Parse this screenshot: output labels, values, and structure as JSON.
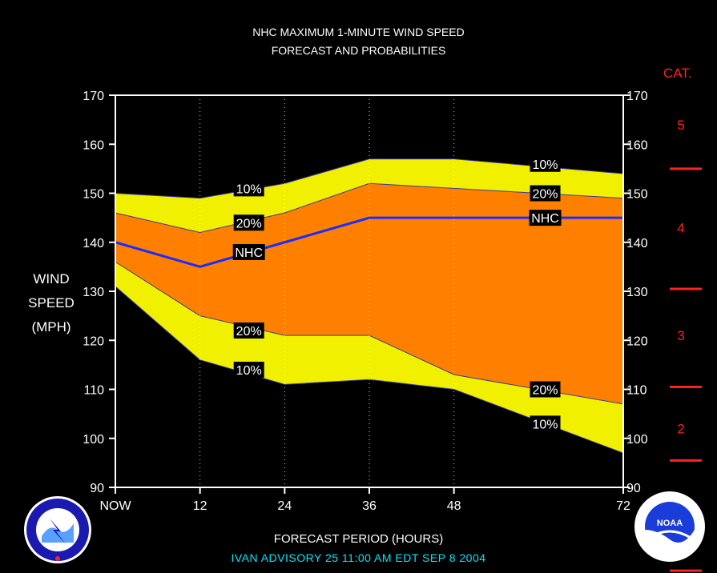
{
  "titles": {
    "line1": "NHC MAXIMUM 1-MINUTE WIND SPEED",
    "line2": "FORECAST AND PROBABILITIES"
  },
  "y_axis_label": [
    "WIND",
    "SPEED",
    "(MPH)"
  ],
  "x_axis_label": "FORECAST PERIOD (HOURS)",
  "advisory": "IVAN   ADVISORY  25 11:00 AM EDT SEP  8  2004",
  "category_title": "CAT.",
  "colors": {
    "background": "#000000",
    "band_10": "#f0f000",
    "band_20": "#ff8000",
    "nhc_line": "#1a2cff",
    "category": "#ff2020",
    "advisory": "#00e5ff"
  },
  "chart_data": {
    "type": "area",
    "x": [
      0,
      12,
      24,
      36,
      48,
      72
    ],
    "x_tick_labels": [
      "NOW",
      "12",
      "24",
      "36",
      "48",
      "72"
    ],
    "xlim": [
      0,
      72
    ],
    "ylim": [
      90,
      170
    ],
    "y_ticks": [
      90,
      100,
      110,
      120,
      130,
      140,
      150,
      160,
      170
    ],
    "grid": "vertical dotted at forecast hours",
    "series": [
      {
        "name": "10%",
        "role": "upper",
        "values": [
          150,
          149,
          152,
          157,
          157,
          154
        ]
      },
      {
        "name": "20%",
        "role": "upper",
        "values": [
          146,
          142,
          146,
          152,
          151,
          149
        ]
      },
      {
        "name": "NHC",
        "role": "forecast",
        "values": [
          140,
          135,
          140,
          145,
          145,
          145
        ]
      },
      {
        "name": "20%",
        "role": "lower",
        "values": [
          136,
          125,
          121,
          121,
          113,
          107
        ]
      },
      {
        "name": "10%",
        "role": "lower",
        "values": [
          131,
          116,
          111,
          112,
          110,
          97
        ]
      }
    ],
    "annotations": [
      {
        "text": "10%",
        "x": 17,
        "y": 151
      },
      {
        "text": "20%",
        "x": 17,
        "y": 144
      },
      {
        "text": "NHC",
        "x": 17,
        "y": 138
      },
      {
        "text": "20%",
        "x": 17,
        "y": 122
      },
      {
        "text": "10%",
        "x": 17,
        "y": 114
      },
      {
        "text": "10%",
        "x": 59,
        "y": 156
      },
      {
        "text": "20%",
        "x": 59,
        "y": 150
      },
      {
        "text": "NHC",
        "x": 59,
        "y": 145
      },
      {
        "text": "20%",
        "x": 59,
        "y": 110
      },
      {
        "text": "10%",
        "x": 59,
        "y": 103
      }
    ],
    "categories_scale": {
      "labels": [
        {
          "text": "5",
          "y": 164
        },
        {
          "text": "4",
          "y": 143
        },
        {
          "text": "3",
          "y": 121
        },
        {
          "text": "2",
          "y": 102
        }
      ],
      "boundaries": [
        155,
        130.5,
        110.5,
        95.5,
        73
      ]
    }
  }
}
